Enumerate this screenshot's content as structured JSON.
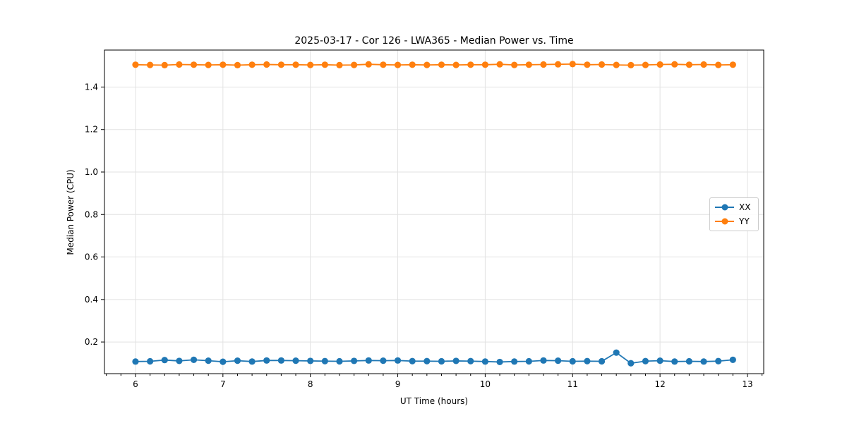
{
  "chart_data": {
    "type": "line",
    "title": "2025-03-17 - Cor 126 - LWA365 - Median Power vs. Time",
    "xlabel": "UT Time (hours)",
    "ylabel": "Median Power (CPU)",
    "xlim": [
      5.645,
      13.186
    ],
    "ylim": [
      0.051,
      1.574
    ],
    "xticks": [
      6,
      7,
      8,
      9,
      10,
      11,
      12,
      13
    ],
    "yticks": [
      0.2,
      0.4,
      0.6,
      0.8,
      1.0,
      1.2,
      1.4
    ],
    "x_minor_step": 0.166667,
    "grid": true,
    "legend_position": "center right",
    "x": [
      6.0,
      6.1667,
      6.3333,
      6.5,
      6.6667,
      6.8333,
      7.0,
      7.1667,
      7.3333,
      7.5,
      7.6667,
      7.8333,
      8.0,
      8.1667,
      8.3333,
      8.5,
      8.6667,
      8.8333,
      9.0,
      9.1667,
      9.3333,
      9.5,
      9.6667,
      9.8333,
      10.0,
      10.1667,
      10.3333,
      10.5,
      10.6667,
      10.8333,
      11.0,
      11.1667,
      11.3333,
      11.5,
      11.6667,
      11.8333,
      12.0,
      12.1667,
      12.3333,
      12.5,
      12.6667,
      12.8333
    ],
    "series": [
      {
        "name": "XX",
        "color": "#1f77b4",
        "values": [
          0.108,
          0.109,
          0.115,
          0.111,
          0.116,
          0.112,
          0.107,
          0.112,
          0.108,
          0.113,
          0.113,
          0.112,
          0.111,
          0.11,
          0.109,
          0.111,
          0.113,
          0.112,
          0.113,
          0.11,
          0.11,
          0.109,
          0.111,
          0.11,
          0.108,
          0.106,
          0.108,
          0.109,
          0.113,
          0.112,
          0.109,
          0.11,
          0.109,
          0.15,
          0.1,
          0.11,
          0.112,
          0.108,
          0.109,
          0.108,
          0.11,
          0.116
        ]
      },
      {
        "name": "YY",
        "color": "#ff7f0e",
        "values": [
          1.505,
          1.504,
          1.503,
          1.506,
          1.505,
          1.504,
          1.505,
          1.503,
          1.505,
          1.506,
          1.505,
          1.505,
          1.504,
          1.505,
          1.503,
          1.504,
          1.507,
          1.505,
          1.504,
          1.505,
          1.504,
          1.505,
          1.504,
          1.505,
          1.505,
          1.507,
          1.504,
          1.505,
          1.506,
          1.507,
          1.508,
          1.505,
          1.506,
          1.504,
          1.503,
          1.504,
          1.506,
          1.507,
          1.505,
          1.506,
          1.504,
          1.505
        ]
      }
    ]
  }
}
